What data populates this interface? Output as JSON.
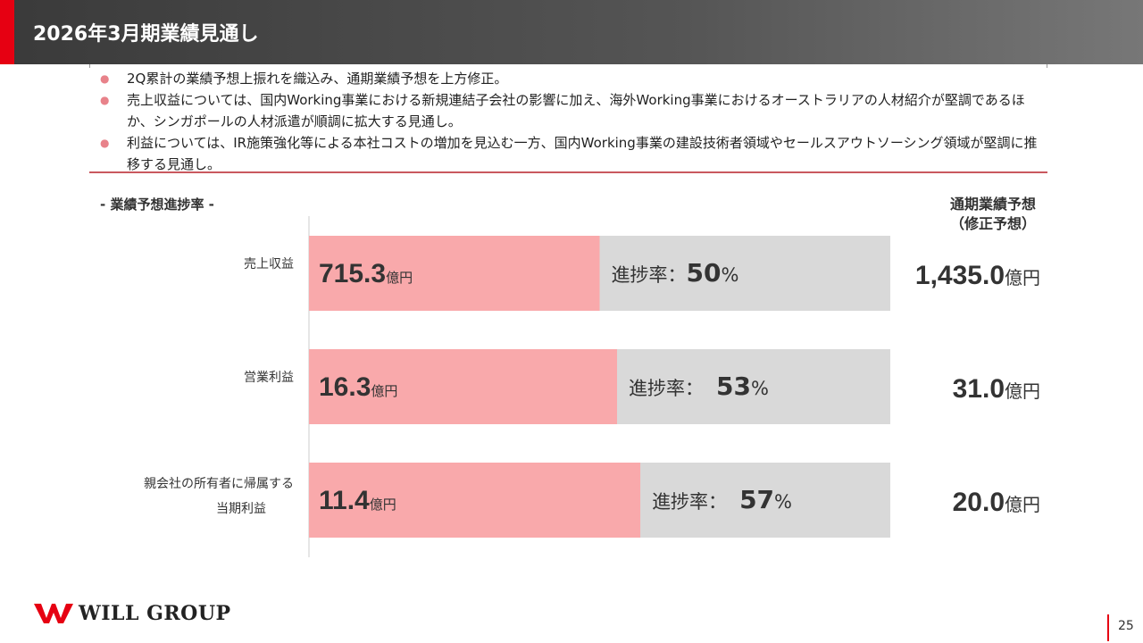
{
  "header": {
    "title": "2026年3月期業績見通し"
  },
  "bullets": [
    "2Q累計の業績予想上振れを織込み、通期業績予想を上方修正。",
    "売上収益については、国内Working事業における新規連結子会社の影響に加え、海外Working事業におけるオーストラリアの人材紹介が堅調であるほか、シンガポールの人材派遣が順調に拡大する見通し。",
    "利益については、IR施策強化等による本社コストの増加を見込む一方、国内Working事業の建設技術者領域やセールスアウトソーシング領域が堅調に推移する見通し。"
  ],
  "bullet_marker": "●",
  "section_label": "- 業績予想進捗率 -",
  "forecast_header": {
    "line1": "通期業績予想",
    "line2": "（修正予想）"
  },
  "chart_data": {
    "type": "bar",
    "orientation": "horizontal",
    "stacked_progress": true,
    "categories": [
      [
        "売上収益"
      ],
      [
        "営業利益"
      ],
      [
        "親会社の所有者に帰属する",
        "当期利益"
      ]
    ],
    "actual_values": [
      "715.3",
      "16.3",
      "11.4"
    ],
    "forecast_values": [
      "1,435.0",
      "31.0",
      "20.0"
    ],
    "unit": "億円",
    "progress_label": "進捗率：",
    "progress_label_spaced": "進捗率：",
    "progress_values": [
      50,
      53,
      57
    ],
    "percent_sign": "%",
    "xlim": [
      0,
      100
    ],
    "colors": {
      "progress": "#f9a9ab",
      "remaining": "#d9d9d9",
      "axis": "#cccccc"
    }
  },
  "footer": {
    "logo_text": "WILL GROUP",
    "page_number": "25"
  },
  "colors": {
    "accent": "#e60012",
    "bullet": "#e8828a",
    "rule": "#c9585e"
  }
}
